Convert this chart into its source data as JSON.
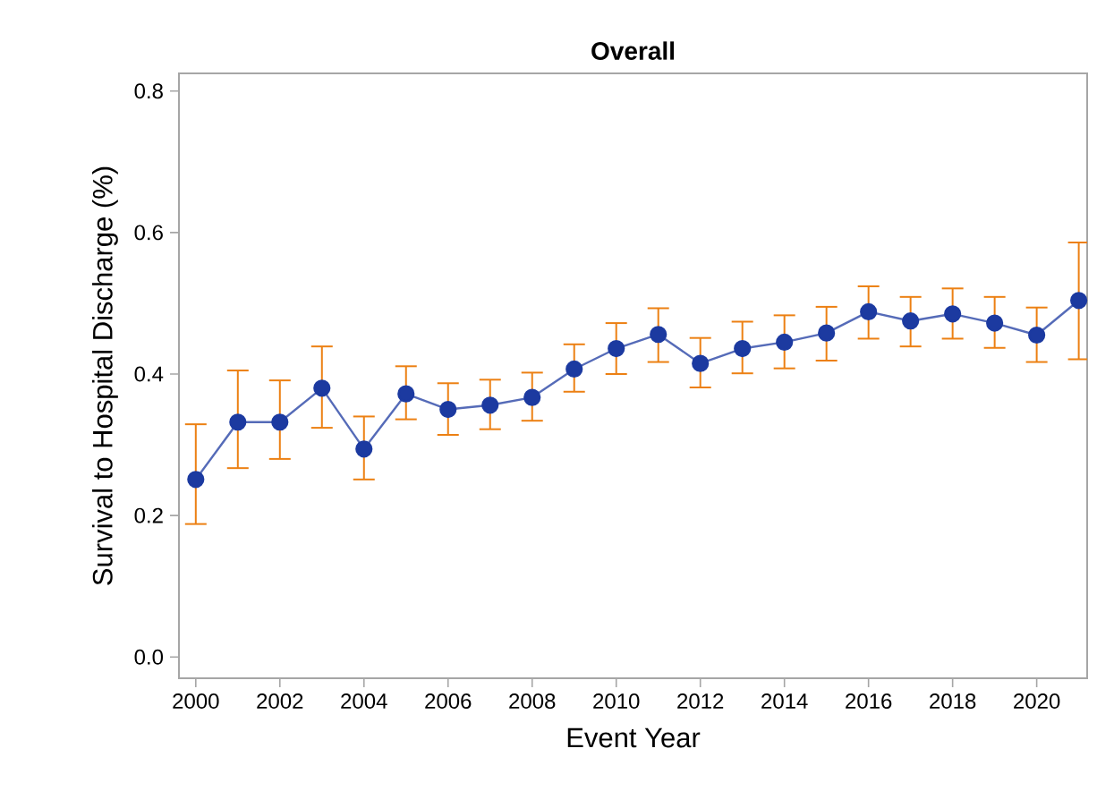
{
  "chart_data": {
    "type": "line",
    "title": "Overall",
    "xlabel": "Event Year",
    "ylabel": "Survival to Hospital Discharge (%)",
    "x": [
      2000,
      2001,
      2002,
      2003,
      2004,
      2005,
      2006,
      2007,
      2008,
      2009,
      2010,
      2011,
      2012,
      2013,
      2014,
      2015,
      2016,
      2017,
      2018,
      2019,
      2020,
      2021
    ],
    "series": [
      {
        "color": "#1c3aa0",
        "values": [
          0.251,
          0.332,
          0.332,
          0.38,
          0.294,
          0.372,
          0.35,
          0.356,
          0.367,
          0.407,
          0.436,
          0.456,
          0.415,
          0.436,
          0.445,
          0.458,
          0.488,
          0.475,
          0.485,
          0.472,
          0.455,
          0.504
        ],
        "errors": [
          [
            0.188,
            0.329
          ],
          [
            0.267,
            0.405
          ],
          [
            0.28,
            0.391
          ],
          [
            0.324,
            0.439
          ],
          [
            0.251,
            0.34
          ],
          [
            0.336,
            0.411
          ],
          [
            0.314,
            0.387
          ],
          [
            0.322,
            0.392
          ],
          [
            0.334,
            0.402
          ],
          [
            0.375,
            0.442
          ],
          [
            0.4,
            0.472
          ],
          [
            0.417,
            0.493
          ],
          [
            0.381,
            0.451
          ],
          [
            0.401,
            0.474
          ],
          [
            0.408,
            0.483
          ],
          [
            0.419,
            0.495
          ],
          [
            0.45,
            0.524
          ],
          [
            0.439,
            0.509
          ],
          [
            0.45,
            0.521
          ],
          [
            0.437,
            0.509
          ],
          [
            0.417,
            0.494
          ],
          [
            0.421,
            0.586
          ]
        ]
      }
    ],
    "xlim": [
      1999.6,
      2021.2
    ],
    "ylim": [
      -0.03,
      0.825
    ],
    "xticks": [
      2000,
      2002,
      2004,
      2006,
      2008,
      2010,
      2012,
      2014,
      2016,
      2018,
      2020
    ],
    "yticks": [
      {
        "value": 0,
        "label": "0.0"
      },
      0.2,
      0.4,
      0.6,
      0.8
    ],
    "marker": "circle",
    "line_style": "solid",
    "grid": false,
    "legend": false
  }
}
